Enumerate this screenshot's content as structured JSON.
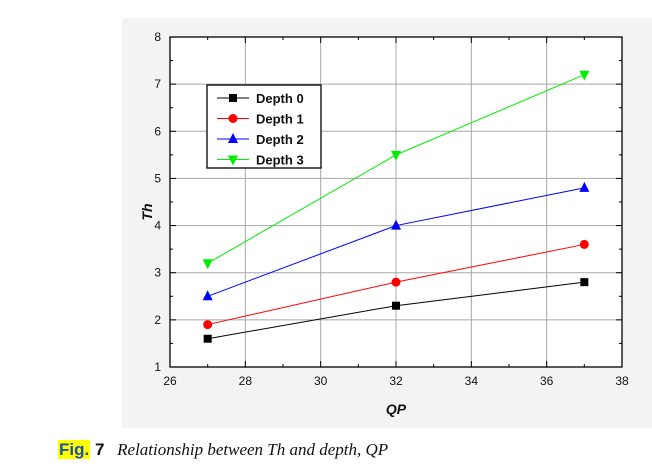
{
  "chart_data": {
    "type": "line",
    "title": "",
    "xlabel": "QP",
    "ylabel": "Th",
    "x": [
      27,
      32,
      37
    ],
    "xlim": [
      26,
      38
    ],
    "ylim": [
      1,
      8
    ],
    "xticks": [
      26,
      28,
      30,
      32,
      34,
      36,
      38
    ],
    "yticks": [
      1,
      2,
      3,
      4,
      5,
      6,
      7,
      8
    ],
    "grid": true,
    "legend_position": "top-left",
    "series": [
      {
        "name": "Depth 0",
        "values": [
          1.6,
          2.3,
          2.8
        ],
        "color": "#000000",
        "marker": "square"
      },
      {
        "name": "Depth 1",
        "values": [
          1.9,
          2.8,
          3.6
        ],
        "color": "#ff0000",
        "marker": "circle"
      },
      {
        "name": "Depth 2",
        "values": [
          2.5,
          4.0,
          4.8
        ],
        "color": "#0000ff",
        "marker": "triangle-up"
      },
      {
        "name": "Depth 3",
        "values": [
          3.2,
          5.5,
          7.2
        ],
        "color": "#00ee00",
        "marker": "triangle-down"
      }
    ]
  },
  "caption": {
    "label": "Fig.",
    "number": "7",
    "text": "Relationship between Th and depth, QP"
  }
}
